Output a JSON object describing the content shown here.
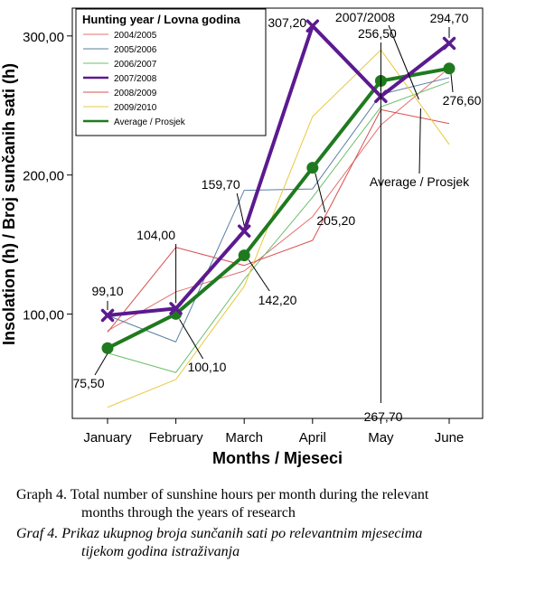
{
  "chart_data": {
    "type": "line",
    "xlabel": "Months / Mjeseci",
    "ylabel": "Insolation (h) / Broj sunčanih sati (h)",
    "categories": [
      "January",
      "February",
      "March",
      "April",
      "May",
      "June"
    ],
    "ylim": [
      25,
      320
    ],
    "yticks": [
      100,
      200,
      300
    ],
    "ytick_labels": [
      "100,00",
      "200,00",
      "300,00"
    ],
    "grid": false,
    "legend": {
      "title": "Hunting year / Lovna godina",
      "placement": "top-left"
    },
    "series": [
      {
        "name": "2004/2005",
        "color": "#e07070",
        "values": [
          88,
          116,
          131,
          170,
          236,
          277
        ],
        "width": 1,
        "marker": "none"
      },
      {
        "name": "2005/2006",
        "color": "#5a7fa0",
        "values": [
          99,
          80,
          189,
          190,
          258,
          270
        ],
        "width": 1,
        "marker": "none"
      },
      {
        "name": "2006/2007",
        "color": "#6cbf6c",
        "values": [
          72,
          58,
          125,
          184,
          249,
          267
        ],
        "width": 1,
        "marker": "none"
      },
      {
        "name": "2007/2008",
        "color": "#5b1a8f",
        "values": [
          99.1,
          104.0,
          159.7,
          307.2,
          256.5,
          294.7
        ],
        "width": 4,
        "marker": "x"
      },
      {
        "name": "2008/2009",
        "color": "#d85050",
        "values": [
          87,
          148,
          135,
          153,
          247,
          237
        ],
        "width": 1,
        "marker": "none"
      },
      {
        "name": "2009/2010",
        "color": "#e8c840",
        "values": [
          33,
          53,
          120,
          242,
          290,
          222
        ],
        "width": 1,
        "marker": "none"
      },
      {
        "name": "Average / Prosjek",
        "color": "#1f7a1f",
        "values": [
          75.5,
          100.1,
          142.2,
          205.2,
          267.7,
          276.6
        ],
        "width": 4,
        "marker": "circle"
      }
    ],
    "annotations": {
      "series_2007_2008": "2007/2008",
      "series_average": "Average / Prosjek",
      "purple_labels": [
        "99,10",
        "104,00",
        "159,70",
        "307,20",
        "256,50",
        "294,70"
      ],
      "green_labels": [
        "75,50",
        "100,10",
        "142,20",
        "205,20",
        "267,70",
        "276,60"
      ]
    }
  },
  "caption": {
    "en_line1": "Graph 4. Total number of sunshine hours per month during the relevant",
    "en_line2": "months through the years of research",
    "hr_line1": "Graf 4. Prikaz ukupnog broja sunčanih sati po relevantnim mjesecima",
    "hr_line2": "tijekom godina istraživanja"
  }
}
